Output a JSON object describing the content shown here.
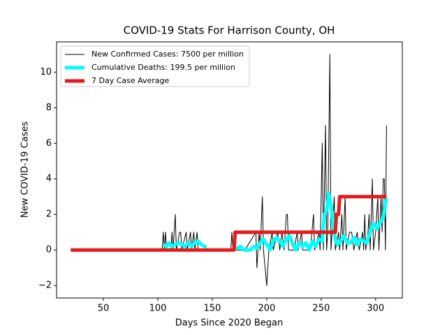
{
  "chart_data": {
    "type": "line",
    "title": "COVID-19 Stats For Harrison County, OH",
    "xlabel": "Days Since 2020 Began",
    "ylabel": "New COVID-19 Cases",
    "xlim": [
      7,
      324.5
    ],
    "ylim": [
      -2.7,
      11.7
    ],
    "xticks": [
      50,
      100,
      150,
      200,
      250,
      300
    ],
    "yticks": [
      {
        "value": -2,
        "label": "−2"
      },
      0,
      2,
      4,
      6,
      8,
      10
    ],
    "legend": "upper left",
    "series": [
      {
        "name": "New Confirmed Cases: 7500 per million",
        "color": "#000000",
        "width": 1,
        "x": [
          20,
          104,
          105,
          106,
          107,
          108,
          112,
          113,
          114,
          116,
          117,
          120,
          121,
          122,
          126,
          127,
          130,
          131,
          133,
          134,
          136,
          137,
          167,
          168,
          169,
          175,
          180,
          190,
          191,
          193,
          194,
          196,
          197,
          200,
          202,
          205,
          206,
          210,
          212,
          214,
          216,
          218,
          219,
          220,
          225,
          228,
          229,
          232,
          233,
          240,
          243,
          244,
          248,
          249,
          251,
          252,
          254,
          255,
          256,
          258,
          259,
          262,
          263,
          266,
          267,
          269,
          270,
          272,
          273,
          276,
          278,
          280,
          283,
          285,
          288,
          289,
          290,
          291,
          293,
          294,
          295,
          297,
          298,
          300,
          302,
          303,
          305,
          306,
          307,
          308,
          309,
          310
        ],
        "values": [
          0,
          0,
          1,
          0,
          1,
          0,
          0,
          1,
          0,
          2,
          0,
          1,
          1,
          0,
          1,
          0,
          1,
          0,
          1,
          0,
          1,
          0,
          0,
          1,
          0,
          0,
          0,
          1,
          -1,
          1,
          0,
          3,
          0,
          -2,
          0,
          1,
          0,
          1,
          0,
          1,
          0,
          2,
          2,
          0,
          0,
          1,
          0,
          1,
          0,
          0,
          2,
          0,
          1,
          0,
          6,
          0,
          7,
          0,
          1,
          11,
          0,
          3,
          0,
          1,
          0,
          2,
          0,
          3,
          0,
          1,
          1,
          0,
          1,
          0,
          1,
          0,
          2,
          0,
          1,
          2,
          0,
          4,
          0,
          1,
          3,
          0,
          3,
          1,
          4,
          4,
          0,
          7
        ]
      },
      {
        "name": "Cumulative Deaths: 199.5 per million",
        "color": "#00ffff",
        "width": 5,
        "x": [
          105,
          108,
          110,
          113,
          116,
          119,
          122,
          125,
          128,
          131,
          134,
          137,
          140,
          143,
          145,
          157,
          170,
          173,
          176,
          179,
          185,
          188,
          191,
          194,
          197,
          200,
          203,
          206,
          209,
          212,
          215,
          218,
          221,
          224,
          227,
          230,
          233,
          236,
          239,
          242,
          245,
          248,
          251,
          253,
          255,
          257,
          259,
          261,
          263,
          265,
          268,
          271,
          274,
          277,
          280,
          283,
          286,
          289,
          292,
          295,
          298,
          301,
          304,
          307,
          310
        ],
        "values": [
          0.3,
          0.2,
          0.4,
          0.2,
          0.3,
          0.4,
          0.3,
          0.2,
          0.4,
          0.2,
          0.4,
          0.5,
          0.3,
          0.2,
          0.2,
          null,
          0.1,
          0.1,
          0.2,
          0,
          0,
          0.2,
          0.1,
          0.4,
          0.6,
          0.3,
          0,
          0.5,
          0.7,
          0.5,
          0.2,
          0.6,
          0.8,
          0.3,
          0,
          0.4,
          0.2,
          0.4,
          0,
          0.5,
          0.2,
          0.6,
          0.5,
          2,
          2.2,
          3.2,
          2.5,
          1.5,
          0.6,
          0.3,
          0.5,
          0.8,
          0.4,
          0.4,
          0.7,
          0.3,
          0.6,
          0.5,
          0.4,
          1,
          1.5,
          1.2,
          1.5,
          1.8,
          2.9
        ]
      },
      {
        "name": "7 Day Case Average",
        "color": "#e41a1c",
        "width": 5,
        "x": [
          20,
          170,
          171,
          263,
          264,
          266,
          267,
          310
        ],
        "values": [
          0,
          0,
          1,
          1,
          2,
          2,
          3,
          3
        ]
      }
    ]
  }
}
